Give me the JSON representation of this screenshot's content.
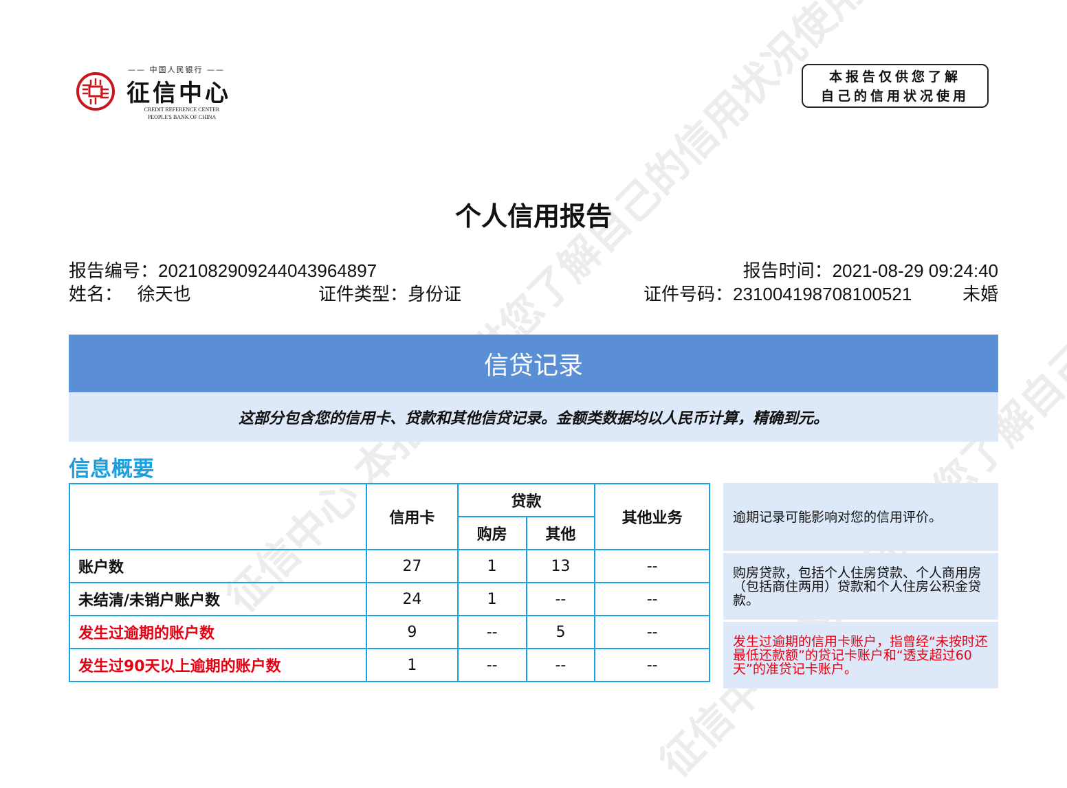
{
  "logo": {
    "top": "中国人民银行",
    "main": "征信中心",
    "en1": "CREDIT REFERENCE CENTER",
    "en2": "PEOPLE'S BANK OF CHINA"
  },
  "stamp": {
    "line1": "本报告仅供您了解",
    "line2": "自己的信用状况使用"
  },
  "title": "个人信用报告",
  "info": {
    "report_no": "报告编号：2021082909244043964897",
    "report_time": "报告时间：2021-08-29 09:24:40",
    "name": "姓名：   徐天也",
    "id_type": "证件类型：身份证",
    "id_no": "证件号码：231004198708100521",
    "marital": "未婚"
  },
  "section": {
    "banner": "信贷记录",
    "desc": "这部分包含您的信用卡、贷款和其他信贷记录。金额类数据均以人民币计算，精确到元。",
    "subtitle": "信息概要"
  },
  "table": {
    "headers": {
      "credit_card": "信用卡",
      "loan": "贷款",
      "housing": "购房",
      "other": "其他",
      "other_business": "其他业务"
    },
    "rows": [
      {
        "label": "账户数",
        "cells": [
          "27",
          "1",
          "13",
          "--"
        ],
        "highlight": false
      },
      {
        "label": "未结清/未销户账户数",
        "cells": [
          "24",
          "1",
          "--",
          "--"
        ],
        "highlight": false
      },
      {
        "label": "发生过逾期的账户数",
        "cells": [
          "9",
          "--",
          "5",
          "--"
        ],
        "highlight": true
      },
      {
        "label": "发生过90天以上逾期的账户数",
        "cells": [
          "1",
          "--",
          "--",
          "--"
        ],
        "highlight": true
      }
    ]
  },
  "notes": [
    "逾期记录可能影响对您的信用评价。",
    "购房贷款，包括个人住房贷款、个人商用房（包括商住两用）贷款和个人住房公积金贷款。",
    "发生过逾期的信用卡账户，指曾经“未按时还最低还款额”的贷记卡账户和“透支超过60天”的准贷记卡账户。"
  ],
  "watermark": "征信中心 本报告仅供您了解自己的信用状况使用",
  "colors": {
    "banner": "#5a8fd5",
    "band": "#dde9f9",
    "accent": "#1a9fe0",
    "alert": "#e60012",
    "seal": "#c8161d"
  }
}
